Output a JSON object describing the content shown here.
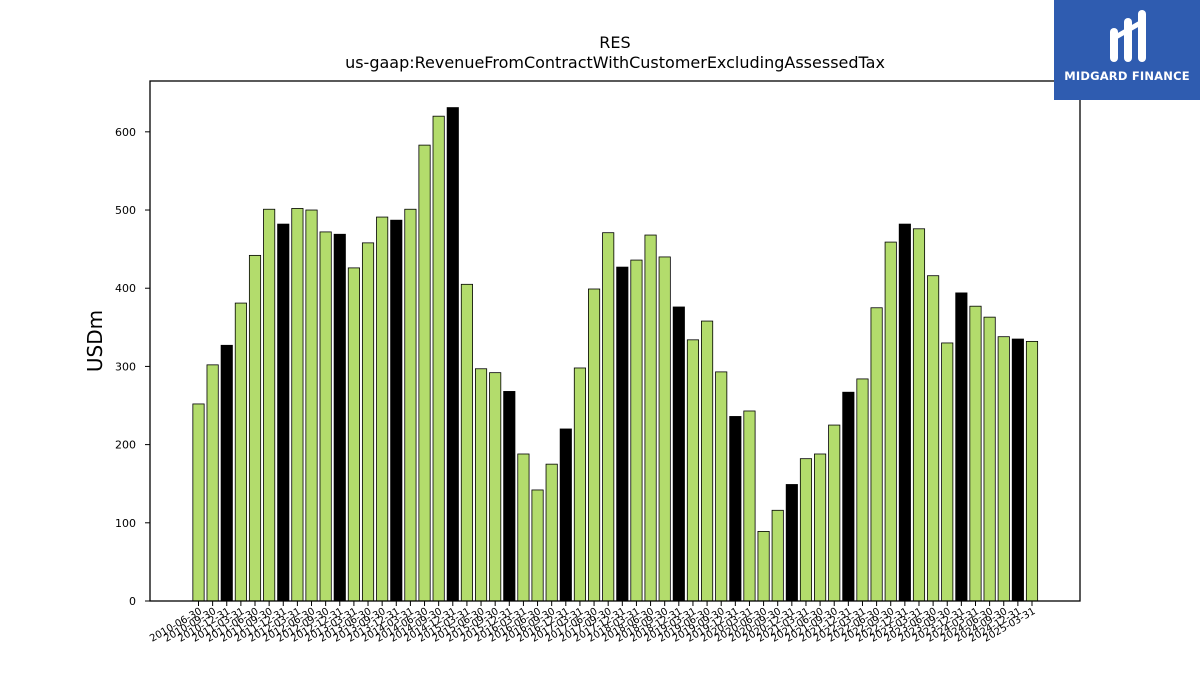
{
  "logo": {
    "text": "MIDGARD FINANCE",
    "background": "#2f5cb0"
  },
  "chart_data": {
    "type": "bar",
    "title": "RES",
    "subtitle": "us-gaap:RevenueFromContractWithCustomerExcludingAssessedTax",
    "xlabel": "",
    "ylabel": "USDm",
    "ylim": [
      0,
      665
    ],
    "yticks": [
      0,
      100,
      200,
      300,
      400,
      500,
      600
    ],
    "grid": false,
    "colors": {
      "default": "#b3dc6c",
      "highlight": "#000000"
    },
    "categories": [
      "2010-06-30",
      "2010-09-30",
      "2010-12-31",
      "2011-03-31",
      "2011-06-30",
      "2011-09-30",
      "2011-12-31",
      "2012-03-31",
      "2012-06-30",
      "2012-09-30",
      "2012-12-31",
      "2013-03-31",
      "2013-06-30",
      "2013-09-30",
      "2013-12-31",
      "2014-03-31",
      "2014-06-30",
      "2014-09-30",
      "2014-12-31",
      "2015-03-31",
      "2015-06-30",
      "2015-09-30",
      "2015-12-31",
      "2016-03-31",
      "2016-06-30",
      "2016-09-30",
      "2016-12-31",
      "2017-03-31",
      "2017-06-30",
      "2017-09-30",
      "2017-12-31",
      "2018-03-31",
      "2018-06-30",
      "2018-09-30",
      "2018-12-31",
      "2019-03-31",
      "2019-06-30",
      "2019-09-30",
      "2019-12-31",
      "2020-03-31",
      "2020-06-30",
      "2020-09-30",
      "2020-12-31",
      "2021-03-31",
      "2021-06-30",
      "2021-09-30",
      "2021-12-31",
      "2022-03-31",
      "2022-06-30",
      "2022-09-30",
      "2022-12-31",
      "2023-03-31",
      "2023-06-30",
      "2023-09-30",
      "2023-12-31",
      "2024-03-31",
      "2024-06-30",
      "2024-09-30",
      "2024-12-31",
      "2025-03-31"
    ],
    "values": [
      252,
      302,
      327,
      381,
      442,
      501,
      482,
      502,
      500,
      472,
      469,
      426,
      458,
      491,
      487,
      501,
      583,
      620,
      631,
      405,
      297,
      292,
      268,
      188,
      142,
      175,
      220,
      298,
      399,
      471,
      427,
      436,
      468,
      440,
      376,
      334,
      358,
      293,
      236,
      243,
      89,
      116,
      149,
      182,
      188,
      225,
      267,
      284,
      375,
      459,
      482,
      476,
      416,
      330,
      394,
      377,
      363,
      338,
      335,
      332
    ],
    "highlight": [
      false,
      false,
      true,
      false,
      false,
      false,
      true,
      false,
      false,
      false,
      true,
      false,
      false,
      false,
      true,
      false,
      false,
      false,
      true,
      false,
      false,
      false,
      true,
      false,
      false,
      false,
      true,
      false,
      false,
      false,
      true,
      false,
      false,
      false,
      true,
      false,
      false,
      false,
      true,
      false,
      false,
      false,
      true,
      false,
      false,
      false,
      true,
      false,
      false,
      false,
      true,
      false,
      false,
      false,
      true,
      false,
      false,
      false,
      true,
      false
    ]
  }
}
